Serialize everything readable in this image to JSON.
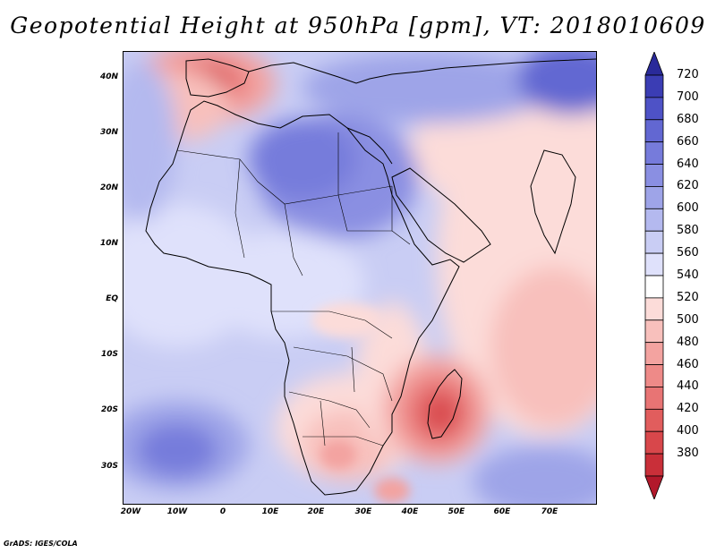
{
  "title": "Geopotential Height at 950hPa [gpm], VT: 2018010609",
  "credit": "GrADS: IGES/COLA",
  "map": {
    "lon_ticks": [
      "20W",
      "10W",
      "0",
      "10E",
      "20E",
      "30E",
      "40E",
      "50E",
      "60E",
      "70E"
    ],
    "lat_ticks": [
      "40N",
      "30N",
      "20N",
      "10N",
      "EQ",
      "10S",
      "20S",
      "30S"
    ]
  },
  "colorbar": {
    "levels": [
      "720",
      "700",
      "680",
      "660",
      "640",
      "620",
      "600",
      "580",
      "560",
      "540",
      "520",
      "500",
      "480",
      "460",
      "440",
      "420",
      "400",
      "380"
    ],
    "colors_low_to_high": [
      "#b2182b",
      "#c92f39",
      "#d8474b",
      "#e15d5d",
      "#e87474",
      "#ee8a88",
      "#f3a3a0",
      "#f8c0bc",
      "#fcdcd9",
      "#ffffff",
      "#dfe1fb",
      "#c9cdf4",
      "#b4b9ef",
      "#9ea4e8",
      "#8a8fe2",
      "#767bdb",
      "#6267d2",
      "#4e52c6",
      "#3b3db4",
      "#2a2a9a"
    ]
  }
}
